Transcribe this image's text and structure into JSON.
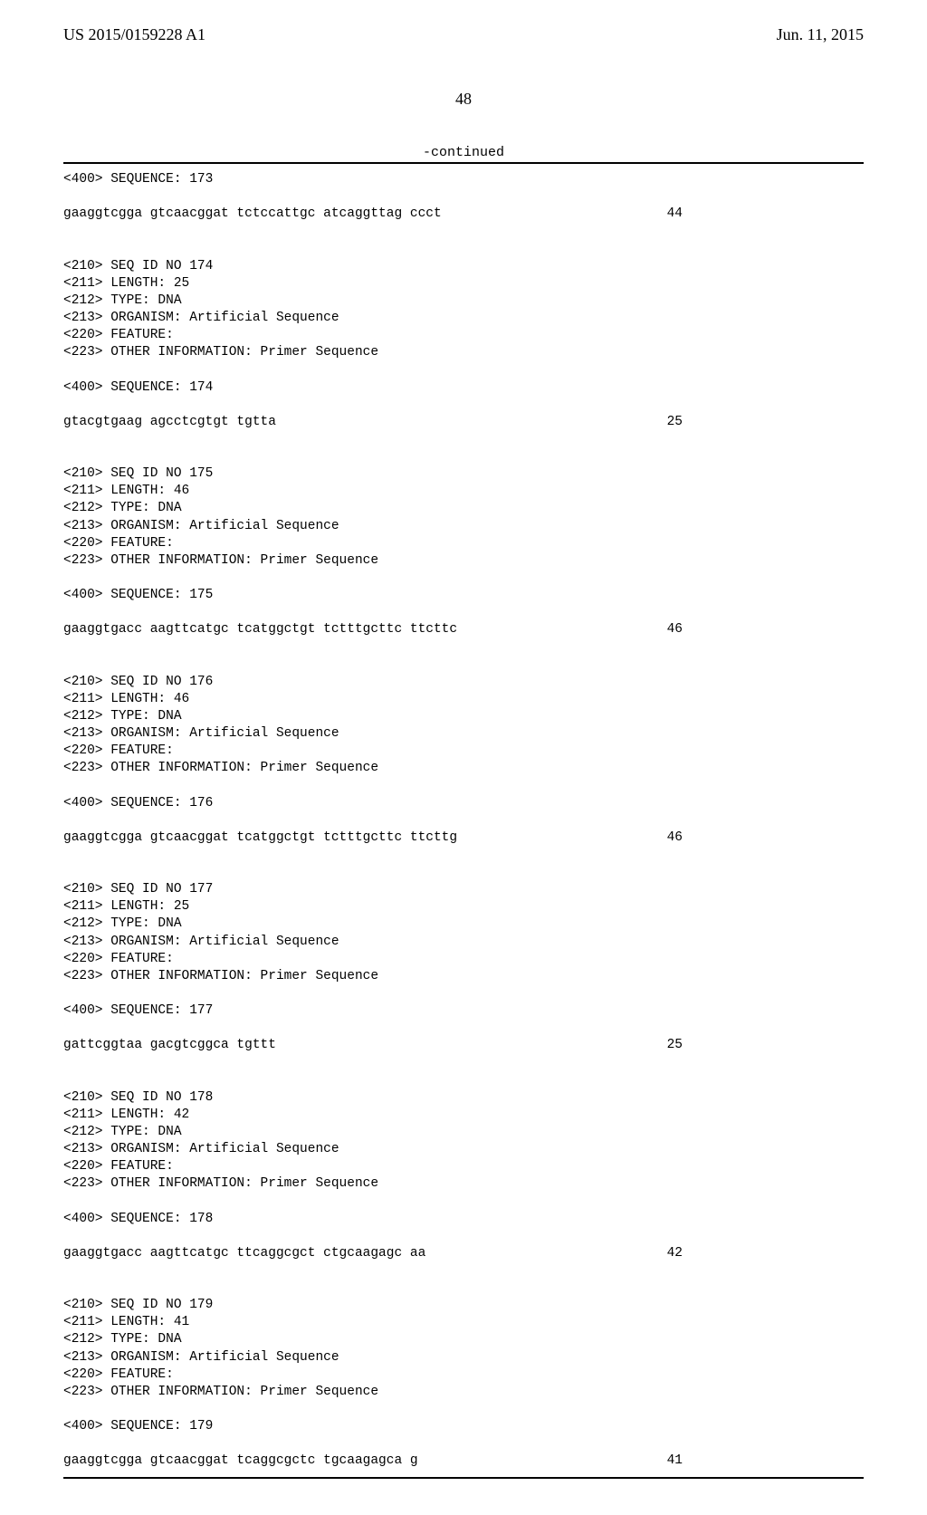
{
  "header": {
    "publication_number": "US 2015/0159228 A1",
    "publication_date": "Jun. 11, 2015"
  },
  "page_number": "48",
  "continued_label": "-continued",
  "entries": [
    {
      "type": "line",
      "text": "<400> SEQUENCE: 173"
    },
    {
      "type": "gap"
    },
    {
      "type": "seqrow",
      "seq": "gaaggtcgga gtcaacggat tctccattgc atcaggttag ccct",
      "num": "44"
    },
    {
      "type": "gap"
    },
    {
      "type": "gap"
    },
    {
      "type": "line",
      "text": "<210> SEQ ID NO 174"
    },
    {
      "type": "line",
      "text": "<211> LENGTH: 25"
    },
    {
      "type": "line",
      "text": "<212> TYPE: DNA"
    },
    {
      "type": "line",
      "text": "<213> ORGANISM: Artificial Sequence"
    },
    {
      "type": "line",
      "text": "<220> FEATURE:"
    },
    {
      "type": "line",
      "text": "<223> OTHER INFORMATION: Primer Sequence"
    },
    {
      "type": "gap"
    },
    {
      "type": "line",
      "text": "<400> SEQUENCE: 174"
    },
    {
      "type": "gap"
    },
    {
      "type": "seqrow",
      "seq": "gtacgtgaag agcctcgtgt tgtta",
      "num": "25"
    },
    {
      "type": "gap"
    },
    {
      "type": "gap"
    },
    {
      "type": "line",
      "text": "<210> SEQ ID NO 175"
    },
    {
      "type": "line",
      "text": "<211> LENGTH: 46"
    },
    {
      "type": "line",
      "text": "<212> TYPE: DNA"
    },
    {
      "type": "line",
      "text": "<213> ORGANISM: Artificial Sequence"
    },
    {
      "type": "line",
      "text": "<220> FEATURE:"
    },
    {
      "type": "line",
      "text": "<223> OTHER INFORMATION: Primer Sequence"
    },
    {
      "type": "gap"
    },
    {
      "type": "line",
      "text": "<400> SEQUENCE: 175"
    },
    {
      "type": "gap"
    },
    {
      "type": "seqrow",
      "seq": "gaaggtgacc aagttcatgc tcatggctgt tctttgcttc ttcttc",
      "num": "46"
    },
    {
      "type": "gap"
    },
    {
      "type": "gap"
    },
    {
      "type": "line",
      "text": "<210> SEQ ID NO 176"
    },
    {
      "type": "line",
      "text": "<211> LENGTH: 46"
    },
    {
      "type": "line",
      "text": "<212> TYPE: DNA"
    },
    {
      "type": "line",
      "text": "<213> ORGANISM: Artificial Sequence"
    },
    {
      "type": "line",
      "text": "<220> FEATURE:"
    },
    {
      "type": "line",
      "text": "<223> OTHER INFORMATION: Primer Sequence"
    },
    {
      "type": "gap"
    },
    {
      "type": "line",
      "text": "<400> SEQUENCE: 176"
    },
    {
      "type": "gap"
    },
    {
      "type": "seqrow",
      "seq": "gaaggtcgga gtcaacggat tcatggctgt tctttgcttc ttcttg",
      "num": "46"
    },
    {
      "type": "gap"
    },
    {
      "type": "gap"
    },
    {
      "type": "line",
      "text": "<210> SEQ ID NO 177"
    },
    {
      "type": "line",
      "text": "<211> LENGTH: 25"
    },
    {
      "type": "line",
      "text": "<212> TYPE: DNA"
    },
    {
      "type": "line",
      "text": "<213> ORGANISM: Artificial Sequence"
    },
    {
      "type": "line",
      "text": "<220> FEATURE:"
    },
    {
      "type": "line",
      "text": "<223> OTHER INFORMATION: Primer Sequence"
    },
    {
      "type": "gap"
    },
    {
      "type": "line",
      "text": "<400> SEQUENCE: 177"
    },
    {
      "type": "gap"
    },
    {
      "type": "seqrow",
      "seq": "gattcggtaa gacgtcggca tgttt",
      "num": "25"
    },
    {
      "type": "gap"
    },
    {
      "type": "gap"
    },
    {
      "type": "line",
      "text": "<210> SEQ ID NO 178"
    },
    {
      "type": "line",
      "text": "<211> LENGTH: 42"
    },
    {
      "type": "line",
      "text": "<212> TYPE: DNA"
    },
    {
      "type": "line",
      "text": "<213> ORGANISM: Artificial Sequence"
    },
    {
      "type": "line",
      "text": "<220> FEATURE:"
    },
    {
      "type": "line",
      "text": "<223> OTHER INFORMATION: Primer Sequence"
    },
    {
      "type": "gap"
    },
    {
      "type": "line",
      "text": "<400> SEQUENCE: 178"
    },
    {
      "type": "gap"
    },
    {
      "type": "seqrow",
      "seq": "gaaggtgacc aagttcatgc ttcaggcgct ctgcaagagc aa",
      "num": "42"
    },
    {
      "type": "gap"
    },
    {
      "type": "gap"
    },
    {
      "type": "line",
      "text": "<210> SEQ ID NO 179"
    },
    {
      "type": "line",
      "text": "<211> LENGTH: 41"
    },
    {
      "type": "line",
      "text": "<212> TYPE: DNA"
    },
    {
      "type": "line",
      "text": "<213> ORGANISM: Artificial Sequence"
    },
    {
      "type": "line",
      "text": "<220> FEATURE:"
    },
    {
      "type": "line",
      "text": "<223> OTHER INFORMATION: Primer Sequence"
    },
    {
      "type": "gap"
    },
    {
      "type": "line",
      "text": "<400> SEQUENCE: 179"
    },
    {
      "type": "gap"
    },
    {
      "type": "seqrow",
      "seq": "gaaggtcgga gtcaacggat tcaggcgctc tgcaagagca g",
      "num": "41"
    }
  ]
}
